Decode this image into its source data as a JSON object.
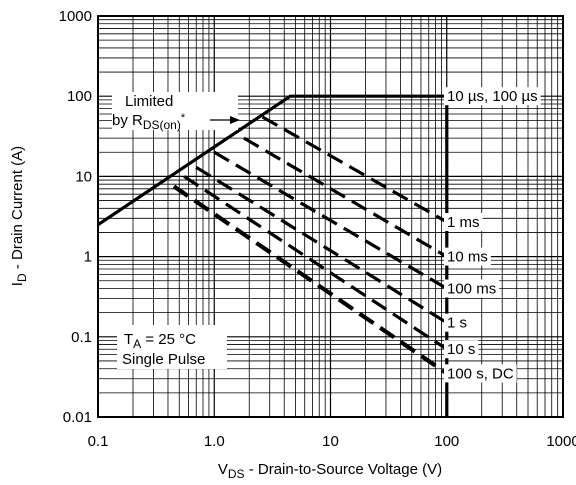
{
  "chart_data": {
    "type": "line",
    "xscale": "log",
    "yscale": "log",
    "xlim": [
      0.1,
      1000
    ],
    "ylim": [
      0.01,
      1000
    ],
    "x_ticks": [
      {
        "value": 0.1,
        "label": "0.1"
      },
      {
        "value": 1,
        "label": "1.0"
      },
      {
        "value": 10,
        "label": "10"
      },
      {
        "value": 100,
        "label": "100"
      },
      {
        "value": 1000,
        "label": "1000"
      }
    ],
    "y_ticks": [
      {
        "value": 0.01,
        "label": "0.01"
      },
      {
        "value": 0.1,
        "label": "0.1"
      },
      {
        "value": 1,
        "label": "1"
      },
      {
        "value": 10,
        "label": "10"
      },
      {
        "value": 100,
        "label": "100"
      },
      {
        "value": 1000,
        "label": "1000"
      }
    ],
    "xlabel": {
      "main": "V",
      "sub": "DS",
      "rest": " - Drain-to-Source Voltage (V)"
    },
    "ylabel": {
      "main": "I",
      "sub": "D",
      "rest": " - Drain Current (A)"
    },
    "grid": true,
    "series": [
      {
        "label": "10 µs, 100 µs",
        "style": "solid",
        "points": [
          [
            0.1,
            2.5
          ],
          [
            4.5,
            100
          ],
          [
            100,
            100
          ],
          [
            100,
            0.01
          ]
        ]
      },
      {
        "label": "1 ms",
        "style": "dashed",
        "points": [
          [
            2.6,
            55
          ],
          [
            100,
            2.7
          ]
        ]
      },
      {
        "label": "10 ms",
        "style": "dashed",
        "points": [
          [
            1.8,
            30
          ],
          [
            100,
            1.0
          ]
        ]
      },
      {
        "label": "100 ms",
        "style": "dashed",
        "points": [
          [
            1.0,
            20
          ],
          [
            100,
            0.4
          ]
        ]
      },
      {
        "label": "1 s",
        "style": "dashed",
        "points": [
          [
            0.7,
            13
          ],
          [
            100,
            0.15
          ]
        ]
      },
      {
        "label": "10 s",
        "style": "dashed",
        "points": [
          [
            0.55,
            10
          ],
          [
            100,
            0.07
          ]
        ]
      },
      {
        "label": "100 s, DC",
        "style": "dashed",
        "points": [
          [
            0.45,
            7.5
          ],
          [
            100,
            0.035
          ]
        ]
      }
    ],
    "annotations": {
      "limited_line1": "Limited",
      "limited_line2_prefix": "by R",
      "limited_line2_sub": "DS(on)",
      "limited_line2_suffix": "*",
      "ta_prefix": "T",
      "ta_sub": "A",
      "ta_suffix": " = 25 °C",
      "pulse": "Single Pulse"
    },
    "colors": {
      "line": "#000000",
      "grid": "#000000",
      "background": "#ffffff"
    }
  }
}
